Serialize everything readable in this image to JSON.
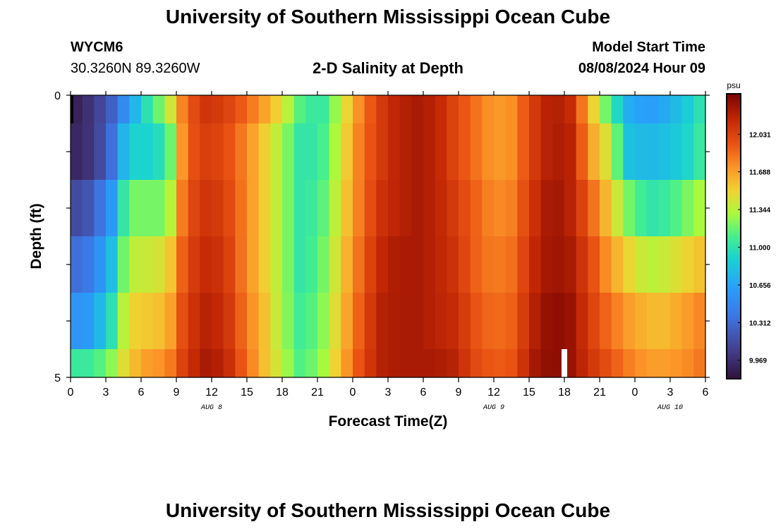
{
  "header": {
    "title": "University of Southern Mississippi Ocean Cube",
    "station_id": "WYCM6",
    "coordinates": "30.3260N  89.3260W",
    "plot_title": "2-D Salinity at Depth",
    "model_start_label": "Model Start Time",
    "model_start_value": "08/08/2024 Hour 09"
  },
  "footer": {
    "title": "University of Southern Mississippi Ocean Cube"
  },
  "chart_data": {
    "type": "heatmap",
    "title": "2-D Salinity at Depth",
    "xlabel": "Forecast Time(Z)",
    "ylabel": "Depth (ft)",
    "x_hours_start": 0,
    "x_hours_end": 54,
    "xlim": [
      0,
      54
    ],
    "ylim": [
      0,
      5
    ],
    "y_ticks": [
      "0",
      "5"
    ],
    "x_tick_labels": [
      "0",
      "3",
      "6",
      "9",
      "12",
      "15",
      "18",
      "21",
      "0",
      "3",
      "6",
      "9",
      "12",
      "15",
      "18",
      "21",
      "0",
      "3",
      "6"
    ],
    "date_labels": [
      {
        "text": "AUG 8",
        "hour": 12
      },
      {
        "text": "AUG 9",
        "hour": 36
      },
      {
        "text": "AUG 10",
        "hour": 51
      }
    ],
    "depth_layer_bounds": [
      0,
      0.5,
      1.5,
      2.5,
      3.5,
      4.5,
      5
    ],
    "missing_cell": {
      "hour": 42,
      "layer": 5
    },
    "colorbar": {
      "unit": "psu",
      "min": 9.8,
      "max": 12.4,
      "ticks": [
        "12.031",
        "11.688",
        "11.344",
        "11.000",
        "10.656",
        "10.312",
        "9.969"
      ]
    },
    "salinity_psu_by_layer": [
      [
        9.85,
        10.0,
        10.2,
        10.6,
        11.0,
        11.3,
        11.9,
        12.1,
        12.05,
        11.9,
        11.7,
        11.45,
        11.1,
        11.0,
        11.35,
        11.75,
        12.05,
        12.2,
        12.25,
        12.2,
        12.0,
        11.85,
        11.7,
        11.75,
        12.05,
        12.25,
        12.15,
        11.6,
        11.1,
        10.7,
        10.6,
        10.7,
        10.85,
        11.05
      ],
      [
        9.9,
        10.0,
        10.25,
        10.9,
        10.9,
        11.0,
        11.9,
        12.05,
        12.0,
        11.8,
        11.55,
        11.3,
        11.0,
        11.05,
        11.4,
        11.8,
        12.05,
        12.2,
        12.25,
        12.2,
        12.0,
        11.85,
        11.7,
        11.75,
        12.05,
        12.25,
        12.2,
        11.7,
        11.4,
        10.8,
        10.75,
        10.8,
        10.9,
        11.1
      ],
      [
        10.1,
        10.2,
        10.5,
        11.2,
        11.2,
        11.2,
        11.95,
        12.1,
        12.05,
        11.8,
        11.55,
        11.3,
        11.0,
        11.1,
        11.45,
        11.8,
        12.1,
        12.2,
        12.25,
        12.2,
        12.05,
        11.9,
        11.75,
        11.8,
        12.1,
        12.3,
        12.2,
        11.9,
        11.55,
        11.2,
        11.0,
        11.05,
        11.2,
        11.35
      ],
      [
        10.3,
        10.4,
        10.7,
        11.35,
        11.4,
        11.45,
        12.0,
        12.15,
        12.1,
        11.8,
        11.55,
        11.3,
        11.0,
        11.15,
        11.5,
        11.85,
        12.15,
        12.25,
        12.25,
        12.2,
        12.1,
        11.9,
        11.8,
        11.85,
        12.15,
        12.3,
        12.25,
        12.0,
        11.7,
        11.5,
        11.35,
        11.4,
        11.5,
        11.6
      ],
      [
        10.55,
        10.6,
        10.9,
        11.5,
        11.55,
        11.6,
        12.05,
        12.2,
        12.15,
        11.85,
        11.6,
        11.3,
        11.05,
        11.2,
        11.55,
        11.9,
        12.2,
        12.25,
        12.25,
        12.2,
        12.15,
        11.95,
        11.85,
        11.9,
        12.2,
        12.35,
        12.3,
        12.05,
        11.85,
        11.7,
        11.6,
        11.6,
        11.7,
        11.8
      ],
      [
        11.05,
        11.05,
        11.2,
        11.55,
        11.7,
        11.75,
        12.1,
        12.25,
        12.2,
        11.9,
        11.6,
        11.35,
        11.1,
        11.25,
        11.6,
        11.95,
        12.2,
        12.25,
        12.25,
        12.25,
        12.2,
        12.0,
        11.9,
        11.95,
        12.25,
        12.35,
        12.3,
        12.1,
        11.95,
        11.8,
        11.7,
        11.7,
        11.75,
        11.85
      ]
    ]
  }
}
